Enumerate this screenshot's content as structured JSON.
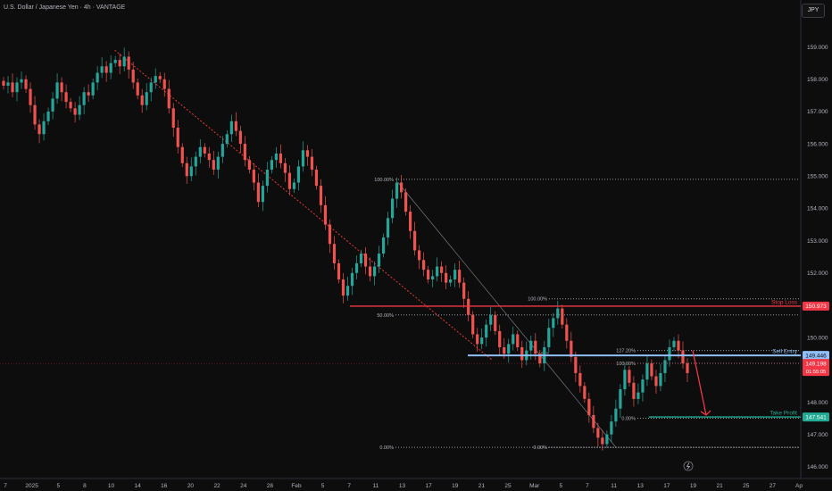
{
  "header": {
    "title": "U.S. Dollar / Japanese Yen · 4h · VANTAGE",
    "currency": "JPY"
  },
  "chart_data": {
    "type": "candlestick",
    "ylim": [
      145.8,
      159.6
    ],
    "y_ticks": [
      146,
      147,
      148,
      149,
      150,
      151,
      152,
      153,
      154,
      155,
      156,
      157,
      158,
      159
    ],
    "x_labels": [
      "7",
      "2025",
      "5",
      "8",
      "10",
      "14",
      "16",
      "20",
      "22",
      "24",
      "28",
      "Feb",
      "5",
      "7",
      "11",
      "13",
      "17",
      "19",
      "21",
      "25",
      "Mar",
      "5",
      "7",
      "11",
      "13",
      "17",
      "19",
      "21",
      "25",
      "27",
      "Ap"
    ],
    "grid": false,
    "closes": [
      157.8,
      157.9,
      157.6,
      157.9,
      158.0,
      157.7,
      157.2,
      156.6,
      156.3,
      156.7,
      157.0,
      157.4,
      157.9,
      157.6,
      157.3,
      157.1,
      156.9,
      157.2,
      157.6,
      157.5,
      157.9,
      158.2,
      158.4,
      158.2,
      158.5,
      158.6,
      158.4,
      158.7,
      158.3,
      157.9,
      157.5,
      157.2,
      157.6,
      157.9,
      158.1,
      158.0,
      157.7,
      157.1,
      156.5,
      155.9,
      155.4,
      155.0,
      155.3,
      155.6,
      155.9,
      155.7,
      155.5,
      155.2,
      155.6,
      156.0,
      156.3,
      156.7,
      156.4,
      156.0,
      155.5,
      155.2,
      154.8,
      154.2,
      154.7,
      155.2,
      155.5,
      155.7,
      155.4,
      155.1,
      154.6,
      154.8,
      155.3,
      155.8,
      155.6,
      155.2,
      154.7,
      154.1,
      153.5,
      152.9,
      152.3,
      151.8,
      151.3,
      151.6,
      152.0,
      152.3,
      152.6,
      152.2,
      151.9,
      152.2,
      152.6,
      153.1,
      153.7,
      154.3,
      154.8,
      154.5,
      153.9,
      153.3,
      152.7,
      152.4,
      152.1,
      151.8,
      151.9,
      152.2,
      152.0,
      151.7,
      151.8,
      152.1,
      151.7,
      151.2,
      150.7,
      150.1,
      149.8,
      150.0,
      150.4,
      150.7,
      150.2,
      149.7,
      149.5,
      149.8,
      150.1,
      149.7,
      149.3,
      149.6,
      149.9,
      149.5,
      149.2,
      149.7,
      150.3,
      150.6,
      150.9,
      150.4,
      149.9,
      149.4,
      148.9,
      148.5,
      148.1,
      147.6,
      147.2,
      146.9,
      146.7,
      147.0,
      147.4,
      147.8,
      148.4,
      149.0,
      148.6,
      148.1,
      148.3,
      148.7,
      149.2,
      148.8,
      148.5,
      148.9,
      149.3,
      149.7,
      149.9,
      149.6,
      149.2,
      148.9
    ],
    "current_price": 149.198,
    "trendline_start": [
      "10",
      158.9
    ],
    "trendline_end": [
      "21",
      149.3
    ],
    "levels": [
      {
        "name": "Stop Loss",
        "value": 150.973,
        "label": "150.973",
        "color": "#f23645"
      },
      {
        "name": "Sell Entry",
        "value": 149.446,
        "label": "149.446",
        "color": "#90bff9"
      },
      {
        "name": "Take Profit",
        "value": 147.541,
        "label": "147.541",
        "color": "#22ab94"
      }
    ],
    "price_label": {
      "value": 149.198,
      "label": "149.198",
      "countdown": "01:55:05",
      "color": "#f23645"
    },
    "fib_upper": {
      "p100": 154.9,
      "p50": 150.7,
      "p0": 146.6,
      "labels": [
        "100.00%",
        "50.00%",
        "0.00%"
      ]
    },
    "fib_middle": {
      "p100": 151.2,
      "p0": 146.6,
      "labels": [
        "100.00%",
        "0.00%"
      ]
    },
    "fib_lower": {
      "p127": 149.6,
      "p100": 149.2,
      "p0": 147.5,
      "labels": [
        "127.20%",
        "100.00%",
        "0.00%"
      ]
    },
    "fib_mid_small": "50%",
    "projection": {
      "from_price": 149.6,
      "to_price": 147.6
    },
    "colors": {
      "up": "#26a69a",
      "down": "#ef5350",
      "trendline": "#e53935"
    }
  }
}
